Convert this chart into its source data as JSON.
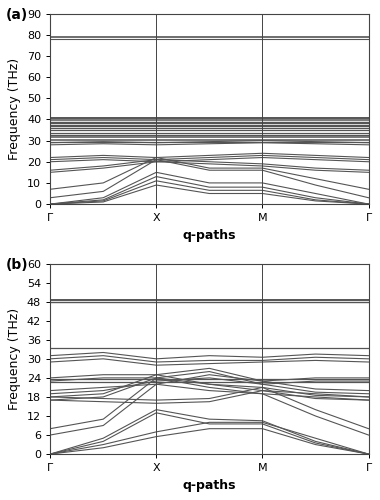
{
  "panel_a": {
    "label": "(a)",
    "ylabel": "Frequency (THz)",
    "xlabel": "q-paths",
    "yticks": [
      0,
      10,
      20,
      30,
      40,
      50,
      60,
      70,
      80,
      90
    ],
    "ylim": [
      0,
      90
    ],
    "xtick_labels": [
      "Γ",
      "X",
      "M",
      "Γ"
    ],
    "xtick_positions": [
      0,
      1,
      2,
      3
    ],
    "vlines": [
      1,
      2
    ],
    "flat_bands": [
      {
        "y": 79.0,
        "lw": 1.2
      },
      {
        "y": 78.0,
        "lw": 0.8
      },
      {
        "y": 40.5,
        "lw": 1.4
      },
      {
        "y": 39.8,
        "lw": 1.1
      },
      {
        "y": 39.0,
        "lw": 1.0
      },
      {
        "y": 38.2,
        "lw": 0.9
      },
      {
        "y": 37.5,
        "lw": 0.9
      },
      {
        "y": 36.7,
        "lw": 0.9
      },
      {
        "y": 35.8,
        "lw": 0.9
      },
      {
        "y": 34.8,
        "lw": 0.9
      },
      {
        "y": 33.7,
        "lw": 0.9
      },
      {
        "y": 32.5,
        "lw": 0.9
      },
      {
        "y": 31.5,
        "lw": 1.1
      },
      {
        "y": 30.5,
        "lw": 1.1
      },
      {
        "y": 29.3,
        "lw": 0.9
      }
    ],
    "dispersive_bands": [
      {
        "pts": [
          [
            0,
            0
          ],
          [
            0.5,
            3
          ],
          [
            1,
            15
          ],
          [
            1.5,
            10
          ],
          [
            2,
            10
          ],
          [
            2.5,
            5
          ],
          [
            3,
            0
          ]
        ],
        "lw": 0.8
      },
      {
        "pts": [
          [
            0,
            0
          ],
          [
            0.5,
            2
          ],
          [
            1,
            13
          ],
          [
            1.5,
            8
          ],
          [
            2,
            8
          ],
          [
            2.5,
            3
          ],
          [
            3,
            0
          ]
        ],
        "lw": 0.8
      },
      {
        "pts": [
          [
            0,
            0
          ],
          [
            0.5,
            1.5
          ],
          [
            1,
            11
          ],
          [
            1.5,
            6.5
          ],
          [
            2,
            6.5
          ],
          [
            2.5,
            2
          ],
          [
            3,
            0
          ]
        ],
        "lw": 0.8
      },
      {
        "pts": [
          [
            0,
            0
          ],
          [
            0.5,
            1
          ],
          [
            1,
            9
          ],
          [
            1.5,
            5
          ],
          [
            2,
            5
          ],
          [
            2.5,
            1.5
          ],
          [
            3,
            0
          ]
        ],
        "lw": 0.8
      },
      {
        "pts": [
          [
            0,
            3
          ],
          [
            0.5,
            6
          ],
          [
            1,
            21
          ],
          [
            1.5,
            16
          ],
          [
            2,
            16
          ],
          [
            2.5,
            9
          ],
          [
            3,
            3
          ]
        ],
        "lw": 0.8
      },
      {
        "pts": [
          [
            0,
            7
          ],
          [
            0.5,
            10
          ],
          [
            1,
            22
          ],
          [
            1.5,
            17
          ],
          [
            2,
            17
          ],
          [
            2.5,
            12
          ],
          [
            3,
            7
          ]
        ],
        "lw": 0.8
      },
      {
        "pts": [
          [
            0,
            15
          ],
          [
            0.5,
            17
          ],
          [
            1,
            20
          ],
          [
            1.5,
            19
          ],
          [
            2,
            18
          ],
          [
            2.5,
            16
          ],
          [
            3,
            15
          ]
        ],
        "lw": 0.8
      },
      {
        "pts": [
          [
            0,
            16
          ],
          [
            0.5,
            18
          ],
          [
            1,
            21
          ],
          [
            1.5,
            20
          ],
          [
            2,
            19
          ],
          [
            2.5,
            17
          ],
          [
            3,
            16
          ]
        ],
        "lw": 0.8
      },
      {
        "pts": [
          [
            0,
            20
          ],
          [
            0.5,
            21
          ],
          [
            1,
            20
          ],
          [
            1.5,
            21
          ],
          [
            2,
            22
          ],
          [
            2.5,
            21
          ],
          [
            3,
            20
          ]
        ],
        "lw": 0.8
      },
      {
        "pts": [
          [
            0,
            21
          ],
          [
            0.5,
            22
          ],
          [
            1,
            21
          ],
          [
            1.5,
            22
          ],
          [
            2,
            23
          ],
          [
            2.5,
            22
          ],
          [
            3,
            21
          ]
        ],
        "lw": 0.8
      },
      {
        "pts": [
          [
            0,
            22
          ],
          [
            0.5,
            23
          ],
          [
            1,
            22
          ],
          [
            1.5,
            23
          ],
          [
            2,
            24
          ],
          [
            2.5,
            23
          ],
          [
            3,
            22
          ]
        ],
        "lw": 0.8
      },
      {
        "pts": [
          [
            0,
            28
          ],
          [
            0.5,
            28.5
          ],
          [
            1,
            28
          ],
          [
            1.5,
            28.5
          ],
          [
            2,
            29
          ],
          [
            2.5,
            28.5
          ],
          [
            3,
            28
          ]
        ],
        "lw": 0.8
      },
      {
        "pts": [
          [
            0,
            29
          ],
          [
            0.5,
            29.5
          ],
          [
            1,
            29
          ],
          [
            1.5,
            29.5
          ],
          [
            2,
            30
          ],
          [
            2.5,
            29.5
          ],
          [
            3,
            29
          ]
        ],
        "lw": 0.8
      }
    ]
  },
  "panel_b": {
    "label": "(b)",
    "ylabel": "Frequency (THz)",
    "xlabel": "q-paths",
    "yticks": [
      0,
      6,
      12,
      18,
      24,
      30,
      36,
      42,
      48,
      54,
      60
    ],
    "ylim": [
      0,
      60
    ],
    "xtick_labels": [
      "Γ",
      "X",
      "M",
      "Γ"
    ],
    "xtick_positions": [
      0,
      1,
      2,
      3
    ],
    "vlines": [
      1,
      2
    ],
    "flat_bands": [
      {
        "y": 48.5,
        "lw": 1.4
      },
      {
        "y": 47.8,
        "lw": 1.0
      },
      {
        "y": 33.5,
        "lw": 0.9
      },
      {
        "y": 23.5,
        "lw": 0.9
      },
      {
        "y": 22.8,
        "lw": 0.9
      }
    ],
    "dispersive_bands": [
      {
        "pts": [
          [
            0,
            0
          ],
          [
            0.5,
            3
          ],
          [
            1,
            7
          ],
          [
            1.5,
            10
          ],
          [
            2,
            10
          ],
          [
            2.5,
            5
          ],
          [
            3,
            0
          ]
        ],
        "lw": 0.8
      },
      {
        "pts": [
          [
            0,
            0
          ],
          [
            0.5,
            2
          ],
          [
            1,
            5.5
          ],
          [
            1.5,
            8
          ],
          [
            2,
            8
          ],
          [
            2.5,
            3
          ],
          [
            3,
            0
          ]
        ],
        "lw": 0.8
      },
      {
        "pts": [
          [
            0,
            0
          ],
          [
            0.5,
            5
          ],
          [
            1,
            14
          ],
          [
            1.5,
            11
          ],
          [
            2,
            10.5
          ],
          [
            2.5,
            4
          ],
          [
            3,
            0
          ]
        ],
        "lw": 0.8
      },
      {
        "pts": [
          [
            0,
            0
          ],
          [
            0.5,
            4
          ],
          [
            1,
            13
          ],
          [
            1.5,
            9.5
          ],
          [
            2,
            9.5
          ],
          [
            2.5,
            3.5
          ],
          [
            3,
            0
          ]
        ],
        "lw": 0.8
      },
      {
        "pts": [
          [
            0,
            6
          ],
          [
            0.5,
            9
          ],
          [
            1,
            22
          ],
          [
            1.5,
            20
          ],
          [
            2,
            19
          ],
          [
            2.5,
            12
          ],
          [
            3,
            6
          ]
        ],
        "lw": 0.8
      },
      {
        "pts": [
          [
            0,
            8
          ],
          [
            0.5,
            11
          ],
          [
            1,
            24
          ],
          [
            1.5,
            22
          ],
          [
            2,
            21
          ],
          [
            2.5,
            14
          ],
          [
            3,
            8
          ]
        ],
        "lw": 0.8
      },
      {
        "pts": [
          [
            0,
            17
          ],
          [
            0.5,
            18
          ],
          [
            1,
            24
          ],
          [
            1.5,
            21
          ],
          [
            2,
            19
          ],
          [
            2.5,
            18
          ],
          [
            3,
            17
          ]
        ],
        "lw": 0.8
      },
      {
        "pts": [
          [
            0,
            18
          ],
          [
            0.5,
            19
          ],
          [
            1,
            25
          ],
          [
            1.5,
            22
          ],
          [
            2,
            20
          ],
          [
            2.5,
            19
          ],
          [
            3,
            18
          ]
        ],
        "lw": 0.8
      },
      {
        "pts": [
          [
            0,
            19
          ],
          [
            0.5,
            20
          ],
          [
            1,
            23
          ],
          [
            1.5,
            24
          ],
          [
            2,
            22
          ],
          [
            2.5,
            19.5
          ],
          [
            3,
            19
          ]
        ],
        "lw": 0.8
      },
      {
        "pts": [
          [
            0,
            20
          ],
          [
            0.5,
            21
          ],
          [
            1,
            22
          ],
          [
            1.5,
            25
          ],
          [
            2,
            23
          ],
          [
            2.5,
            20.5
          ],
          [
            3,
            20
          ]
        ],
        "lw": 0.8
      },
      {
        "pts": [
          [
            0,
            23
          ],
          [
            0.5,
            24
          ],
          [
            1,
            24
          ],
          [
            1.5,
            26
          ],
          [
            2,
            22
          ],
          [
            2.5,
            23
          ],
          [
            3,
            23
          ]
        ],
        "lw": 0.8
      },
      {
        "pts": [
          [
            0,
            24
          ],
          [
            0.5,
            25
          ],
          [
            1,
            25
          ],
          [
            1.5,
            27
          ],
          [
            2,
            23
          ],
          [
            2.5,
            24
          ],
          [
            3,
            24
          ]
        ],
        "lw": 0.8
      },
      {
        "pts": [
          [
            0,
            29
          ],
          [
            0.5,
            30
          ],
          [
            1,
            28
          ],
          [
            1.5,
            28.5
          ],
          [
            2,
            29
          ],
          [
            2.5,
            29.5
          ],
          [
            3,
            29
          ]
        ],
        "lw": 0.8
      },
      {
        "pts": [
          [
            0,
            30
          ],
          [
            0.5,
            31
          ],
          [
            1,
            29
          ],
          [
            1.5,
            29.5
          ],
          [
            2,
            29.5
          ],
          [
            2.5,
            30.5
          ],
          [
            3,
            30
          ]
        ],
        "lw": 0.8
      },
      {
        "pts": [
          [
            0,
            31
          ],
          [
            0.5,
            32
          ],
          [
            1,
            30
          ],
          [
            1.5,
            31
          ],
          [
            2,
            30.5
          ],
          [
            2.5,
            31.5
          ],
          [
            3,
            31
          ]
        ],
        "lw": 0.8
      },
      {
        "pts": [
          [
            0,
            18
          ],
          [
            0.5,
            17.5
          ],
          [
            1,
            17
          ],
          [
            1.5,
            17.5
          ],
          [
            2,
            21
          ],
          [
            2.5,
            18.5
          ],
          [
            3,
            18
          ]
        ],
        "lw": 0.8
      },
      {
        "pts": [
          [
            0,
            17
          ],
          [
            0.5,
            16.5
          ],
          [
            1,
            16
          ],
          [
            1.5,
            16.5
          ],
          [
            2,
            20
          ],
          [
            2.5,
            17.5
          ],
          [
            3,
            17
          ]
        ],
        "lw": 0.8
      }
    ]
  },
  "linecolor": "#555555",
  "bg_color": "#ffffff",
  "title_fontsize": 10,
  "label_fontsize": 9,
  "tick_fontsize": 8
}
